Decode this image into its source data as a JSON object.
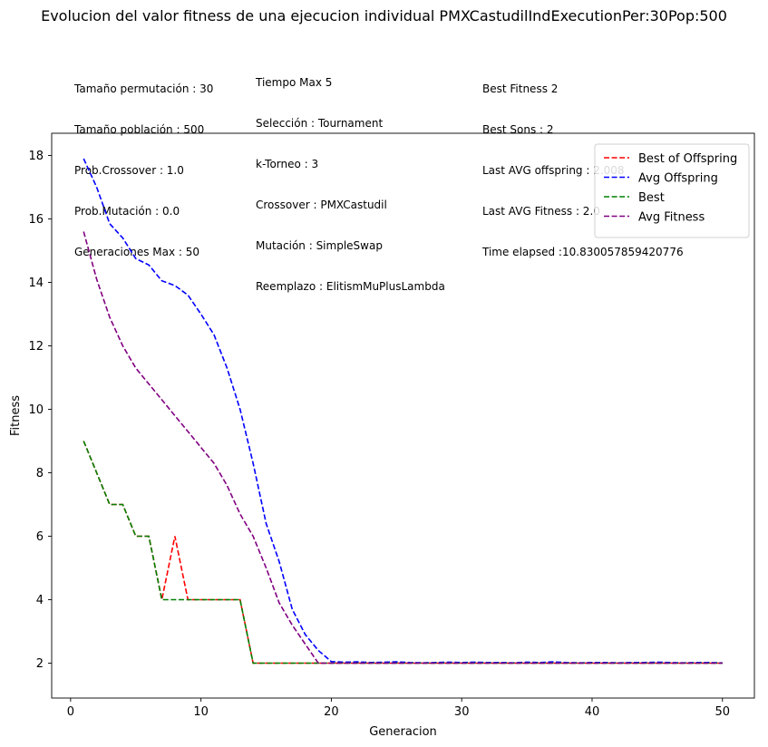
{
  "chart_data": {
    "type": "line",
    "title": "Evolucion del valor fitness de una ejecucion individual PMXCastudilIndExecutionPer:30Pop:500",
    "xlabel": "Generacion",
    "ylabel": "Fitness",
    "xlim": [
      -1.45,
      52.45
    ],
    "ylim": [
      0.9,
      18.7
    ],
    "x_ticks": [
      0,
      10,
      20,
      30,
      40,
      50
    ],
    "y_ticks": [
      2,
      4,
      6,
      8,
      10,
      12,
      14,
      16,
      18
    ],
    "grid": false,
    "legend_position": "top-right",
    "x": [
      1,
      2,
      3,
      4,
      5,
      6,
      7,
      8,
      9,
      10,
      11,
      12,
      13,
      14,
      15,
      16,
      17,
      18,
      19,
      20,
      21,
      22,
      23,
      24,
      25,
      26,
      27,
      28,
      29,
      30,
      31,
      32,
      33,
      34,
      35,
      36,
      37,
      38,
      39,
      40,
      41,
      42,
      43,
      44,
      45,
      46,
      47,
      48,
      49,
      50
    ],
    "series": [
      {
        "name": "Best of Offspring",
        "color": "#ff0000",
        "values": [
          9,
          8,
          7,
          7,
          6,
          6,
          4,
          6,
          4,
          4,
          4,
          4,
          4,
          2,
          2,
          2,
          2,
          2,
          2,
          2,
          2,
          2,
          2,
          2,
          2,
          2,
          2,
          2,
          2,
          2,
          2,
          2,
          2,
          2,
          2,
          2,
          2,
          2,
          2,
          2,
          2,
          2,
          2,
          2,
          2,
          2,
          2,
          2,
          2,
          2
        ]
      },
      {
        "name": "Avg Offspring",
        "color": "#0000ff",
        "values": [
          17.9,
          17.0,
          15.85,
          15.4,
          14.75,
          14.55,
          14.05,
          13.9,
          13.6,
          13.0,
          12.35,
          11.3,
          10.0,
          8.3,
          6.4,
          5.2,
          3.7,
          2.9,
          2.4,
          2.05,
          2.03,
          2.04,
          2.02,
          2.03,
          2.04,
          2.02,
          2.01,
          2.02,
          2.03,
          2.02,
          2.03,
          2.02,
          2.02,
          2.01,
          2.03,
          2.02,
          2.04,
          2.02,
          2.01,
          2.02,
          2.02,
          2.01,
          2.02,
          2.02,
          2.03,
          2.02,
          2.01,
          2.02,
          2.02,
          2.008
        ]
      },
      {
        "name": "Best",
        "color": "#008000",
        "values": [
          9,
          8,
          7,
          7,
          6,
          6,
          4,
          4,
          4,
          4,
          4,
          4,
          4,
          2,
          2,
          2,
          2,
          2,
          2,
          2,
          2,
          2,
          2,
          2,
          2,
          2,
          2,
          2,
          2,
          2,
          2,
          2,
          2,
          2,
          2,
          2,
          2,
          2,
          2,
          2,
          2,
          2,
          2,
          2,
          2,
          2,
          2,
          2,
          2,
          2
        ]
      },
      {
        "name": "Avg Fitness",
        "color": "#800080",
        "values": [
          15.6,
          14.1,
          12.9,
          12.0,
          11.3,
          10.8,
          10.3,
          9.8,
          9.3,
          8.8,
          8.3,
          7.6,
          6.7,
          6.0,
          5.0,
          3.9,
          3.2,
          2.6,
          2.0,
          2.0,
          2.0,
          2.0,
          2.0,
          2.0,
          2.0,
          2.0,
          2.0,
          2.0,
          2.0,
          2.0,
          2.0,
          2.0,
          2.0,
          2.0,
          2.0,
          2.0,
          2.0,
          2.0,
          2.0,
          2.0,
          2.0,
          2.0,
          2.0,
          2.0,
          2.0,
          2.0,
          2.0,
          2.0,
          2.0,
          2.0
        ]
      }
    ],
    "annotations": {
      "col1": [
        "Tamaño permutación : 30",
        "Tamaño población : 500",
        "Prob.Crossover : 1.0",
        "Prob.Mutación : 0.0",
        "Generaciones Max : 50"
      ],
      "col2": [
        "Tiempo Max 5",
        "Selección : Tournament",
        "k-Torneo : 3",
        "Crossover : PMXCastudil",
        "Mutación : SimpleSwap",
        "Reemplazo : ElitismMuPlusLambda"
      ],
      "col3": [
        "Best Fitness 2",
        "Best Sons : 2",
        "Last AVG offspring : 2.008",
        "Last AVG Fitness : 2.0",
        "Time elapsed :10.830057859420776"
      ]
    }
  }
}
